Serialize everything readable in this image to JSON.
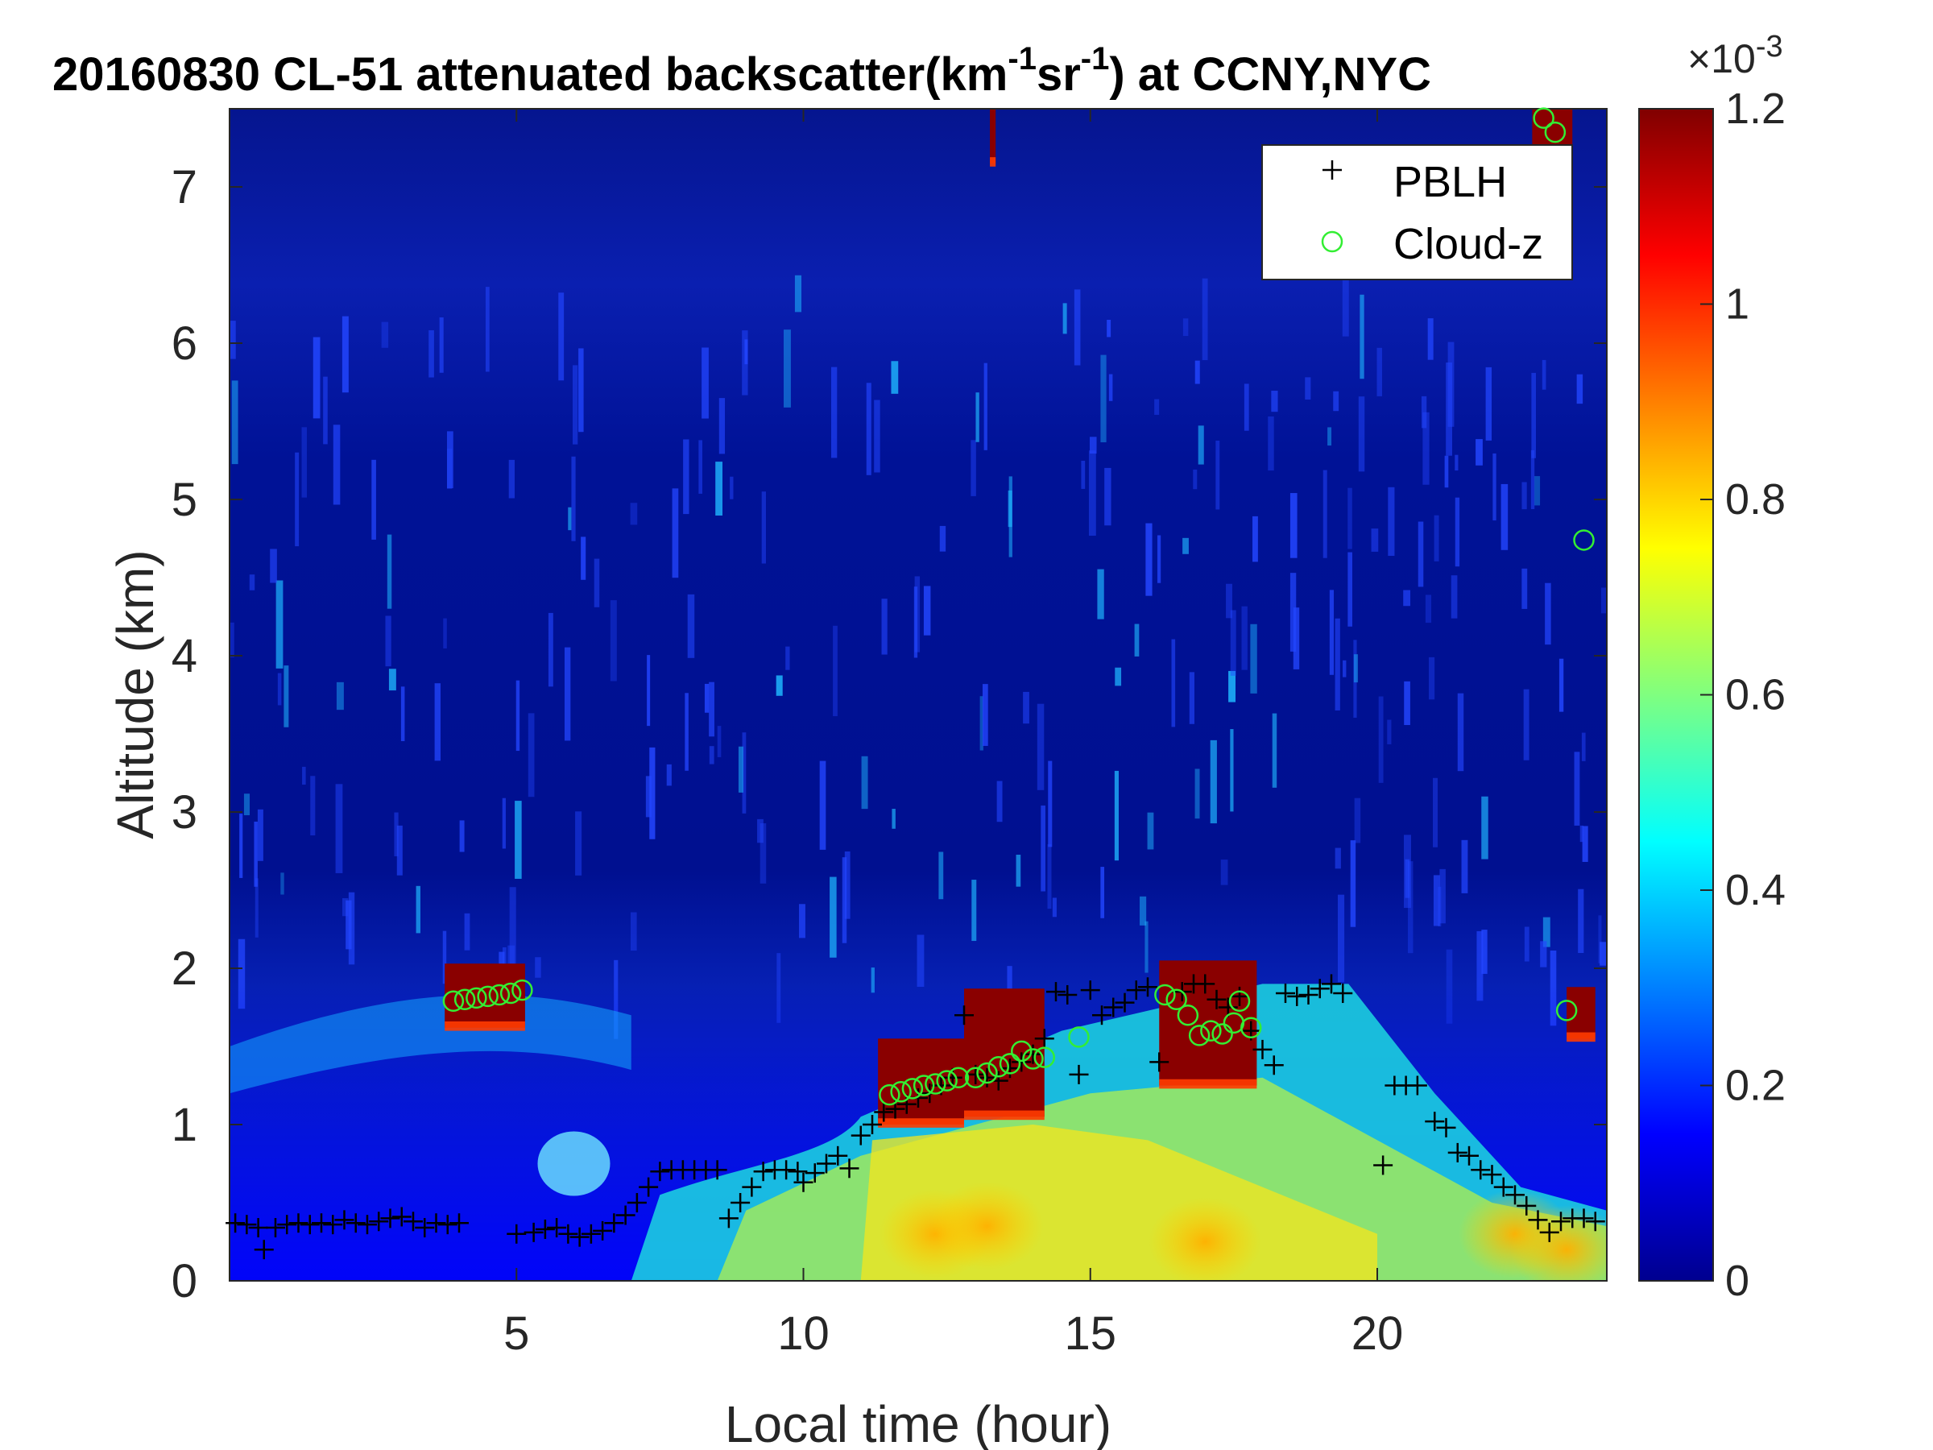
{
  "chart_data": {
    "type": "heatmap",
    "title_main": "20160830  CL-51 attenuated backscatter(km",
    "title_exp1": "-1",
    "title_mid": "sr",
    "title_exp2": "-1",
    "title_end": ") at CCNY,NYC",
    "xlabel": "Local time (hour)",
    "ylabel": "Altitude (km)",
    "xlim": [
      0,
      24
    ],
    "ylim": [
      0,
      7.5
    ],
    "x_ticks": [
      5,
      10,
      15,
      20
    ],
    "x_tick_labels": [
      "5",
      "10",
      "15",
      "20"
    ],
    "y_ticks": [
      0,
      1,
      2,
      3,
      4,
      5,
      6,
      7
    ],
    "y_tick_labels": [
      "0",
      "1",
      "2",
      "3",
      "4",
      "5",
      "6",
      "7"
    ],
    "colorbar": {
      "label": "×10",
      "exponent": "-3",
      "range": [
        0,
        1.2
      ],
      "ticks": [
        0,
        0.2,
        0.4,
        0.6,
        0.8,
        1,
        1.2
      ],
      "tick_labels": [
        "0",
        "0.2",
        "0.4",
        "0.6",
        "0.8",
        "1",
        "1.2"
      ]
    },
    "legend": {
      "placement": "top-right",
      "items": [
        {
          "label": "PBLH",
          "marker": "plus",
          "color": "#000000"
        },
        {
          "label": "Cloud-z",
          "marker": "circle",
          "color": "#33ee33"
        }
      ]
    },
    "pblh": [
      [
        0.1,
        0.37
      ],
      [
        0.3,
        0.36
      ],
      [
        0.5,
        0.34
      ],
      [
        0.6,
        0.2
      ],
      [
        0.8,
        0.34
      ],
      [
        1.0,
        0.36
      ],
      [
        1.2,
        0.37
      ],
      [
        1.4,
        0.36
      ],
      [
        1.6,
        0.37
      ],
      [
        1.8,
        0.36
      ],
      [
        2.0,
        0.39
      ],
      [
        2.2,
        0.37
      ],
      [
        2.4,
        0.36
      ],
      [
        2.6,
        0.38
      ],
      [
        2.8,
        0.4
      ],
      [
        3.0,
        0.41
      ],
      [
        3.2,
        0.38
      ],
      [
        3.4,
        0.34
      ],
      [
        3.6,
        0.37
      ],
      [
        3.8,
        0.36
      ],
      [
        4.0,
        0.37
      ],
      [
        5.0,
        0.3
      ],
      [
        5.3,
        0.31
      ],
      [
        5.5,
        0.33
      ],
      [
        5.7,
        0.34
      ],
      [
        5.9,
        0.3
      ],
      [
        6.1,
        0.28
      ],
      [
        6.3,
        0.3
      ],
      [
        6.5,
        0.32
      ],
      [
        6.7,
        0.37
      ],
      [
        6.9,
        0.42
      ],
      [
        7.1,
        0.5
      ],
      [
        7.3,
        0.6
      ],
      [
        7.5,
        0.7
      ],
      [
        7.7,
        0.71
      ],
      [
        7.9,
        0.71
      ],
      [
        8.1,
        0.71
      ],
      [
        8.3,
        0.71
      ],
      [
        8.5,
        0.71
      ],
      [
        8.7,
        0.4
      ],
      [
        8.9,
        0.5
      ],
      [
        9.1,
        0.6
      ],
      [
        9.3,
        0.7
      ],
      [
        9.5,
        0.71
      ],
      [
        9.7,
        0.71
      ],
      [
        9.9,
        0.7
      ],
      [
        10.0,
        0.63
      ],
      [
        10.2,
        0.69
      ],
      [
        10.4,
        0.75
      ],
      [
        10.6,
        0.8
      ],
      [
        10.8,
        0.72
      ],
      [
        11.0,
        0.93
      ],
      [
        11.2,
        1.0
      ],
      [
        11.4,
        1.08
      ],
      [
        11.6,
        1.1
      ],
      [
        11.8,
        1.13
      ],
      [
        12.0,
        1.17
      ],
      [
        12.2,
        1.2
      ],
      [
        12.4,
        1.25
      ],
      [
        12.6,
        1.3
      ],
      [
        12.8,
        1.7
      ],
      [
        13.0,
        1.32
      ],
      [
        13.2,
        1.3
      ],
      [
        13.4,
        1.28
      ],
      [
        13.6,
        1.36
      ],
      [
        13.8,
        1.4
      ],
      [
        14.0,
        1.45
      ],
      [
        14.2,
        1.55
      ],
      [
        14.4,
        1.85
      ],
      [
        14.6,
        1.83
      ],
      [
        14.8,
        1.32
      ],
      [
        15.0,
        1.86
      ],
      [
        15.2,
        1.7
      ],
      [
        15.4,
        1.75
      ],
      [
        15.6,
        1.78
      ],
      [
        15.8,
        1.86
      ],
      [
        16.0,
        1.88
      ],
      [
        16.2,
        1.4
      ],
      [
        16.6,
        1.85
      ],
      [
        16.8,
        1.9
      ],
      [
        17.0,
        1.9
      ],
      [
        17.2,
        1.8
      ],
      [
        17.4,
        1.75
      ],
      [
        17.6,
        1.82
      ],
      [
        17.8,
        1.6
      ],
      [
        18.0,
        1.48
      ],
      [
        18.2,
        1.38
      ],
      [
        18.4,
        1.84
      ],
      [
        18.6,
        1.82
      ],
      [
        18.8,
        1.83
      ],
      [
        19.0,
        1.87
      ],
      [
        19.2,
        1.9
      ],
      [
        19.4,
        1.84
      ],
      [
        20.1,
        0.74
      ],
      [
        20.3,
        1.25
      ],
      [
        20.5,
        1.25
      ],
      [
        20.7,
        1.25
      ],
      [
        21.0,
        1.02
      ],
      [
        21.2,
        0.98
      ],
      [
        21.4,
        0.82
      ],
      [
        21.6,
        0.8
      ],
      [
        21.8,
        0.71
      ],
      [
        22.0,
        0.68
      ],
      [
        22.2,
        0.6
      ],
      [
        22.4,
        0.55
      ],
      [
        22.6,
        0.48
      ],
      [
        22.8,
        0.39
      ],
      [
        23.0,
        0.31
      ],
      [
        23.2,
        0.38
      ],
      [
        23.4,
        0.4
      ],
      [
        23.6,
        0.4
      ],
      [
        23.8,
        0.38
      ]
    ],
    "cloud_z": [
      [
        3.9,
        1.79
      ],
      [
        4.1,
        1.8
      ],
      [
        4.3,
        1.81
      ],
      [
        4.5,
        1.82
      ],
      [
        4.7,
        1.83
      ],
      [
        4.9,
        1.84
      ],
      [
        5.1,
        1.86
      ],
      [
        11.5,
        1.19
      ],
      [
        11.7,
        1.21
      ],
      [
        11.9,
        1.23
      ],
      [
        12.1,
        1.25
      ],
      [
        12.3,
        1.26
      ],
      [
        12.5,
        1.28
      ],
      [
        12.7,
        1.3
      ],
      [
        13.0,
        1.3
      ],
      [
        13.2,
        1.33
      ],
      [
        13.4,
        1.37
      ],
      [
        13.6,
        1.39
      ],
      [
        13.8,
        1.47
      ],
      [
        14.0,
        1.42
      ],
      [
        14.2,
        1.43
      ],
      [
        14.8,
        1.56
      ],
      [
        16.3,
        1.83
      ],
      [
        16.5,
        1.8
      ],
      [
        16.7,
        1.7
      ],
      [
        16.9,
        1.57
      ],
      [
        17.1,
        1.6
      ],
      [
        17.3,
        1.58
      ],
      [
        17.5,
        1.65
      ],
      [
        17.6,
        1.79
      ],
      [
        17.8,
        1.62
      ],
      [
        22.9,
        7.44
      ],
      [
        23.1,
        7.35
      ],
      [
        23.3,
        1.73
      ],
      [
        23.6,
        4.74
      ]
    ]
  }
}
